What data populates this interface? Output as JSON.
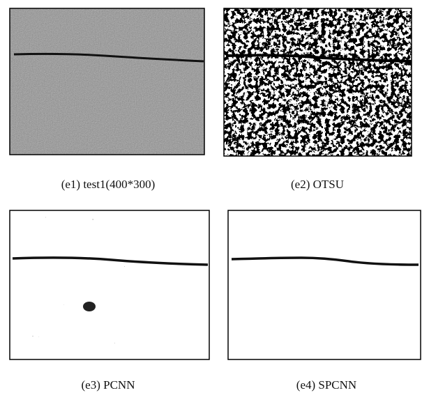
{
  "figures": [
    {
      "caption": "(e1) test1(400*300)"
    },
    {
      "caption": "(e2) OTSU"
    },
    {
      "caption": "(e3) PCNN"
    },
    {
      "caption": "(e4) SPCNN"
    }
  ]
}
